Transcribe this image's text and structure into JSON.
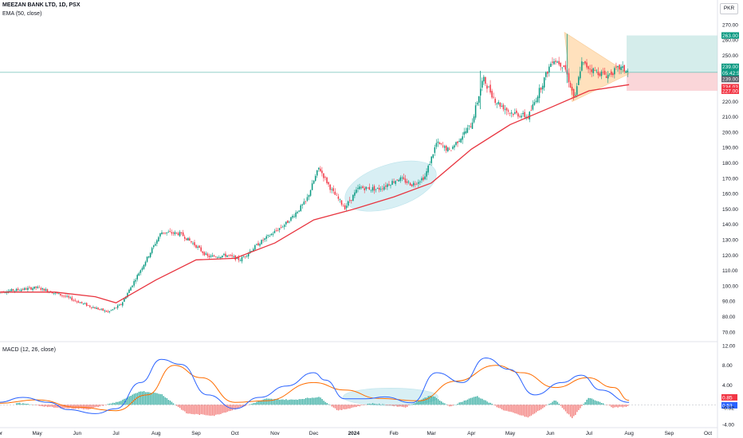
{
  "header": {
    "symbol": "MEEZAN BANK LTD, 1D, PSX",
    "indicator": "EMA (50, close)",
    "currency": "PKR"
  },
  "macd_label": "MACD (12, 26, close)",
  "colors": {
    "up": "#089981",
    "down": "#f23645",
    "ema": "#e8343f",
    "macd_line": "#2962ff",
    "signal_line": "#ff6d00",
    "hist_up": "#26a69a",
    "hist_down": "#ef5350",
    "ellipse": "#a9dde8",
    "triangle": "#ffd8a8",
    "target": "#b2dfdb",
    "stop": "#f8c8cc"
  },
  "chart_data": [
    {
      "type": "candlestick",
      "title": "MEEZAN BANK LTD, 1D, PSX",
      "ylim": [
        65,
        272
      ],
      "y_ticks": [
        "270.00",
        "260.00",
        "250.00",
        "240.00",
        "230.00",
        "220.00",
        "210.00",
        "200.00",
        "190.00",
        "180.00",
        "170.00",
        "160.00",
        "150.00",
        "140.00",
        "130.00",
        "120.00",
        "110.00",
        "100.00",
        "90.00",
        "80.00",
        "70.00"
      ],
      "x_ticks": [
        "Apr",
        "May",
        "Jun",
        "Jul",
        "Aug",
        "Sep",
        "Oct",
        "Nov",
        "Dec",
        "2024",
        "Feb",
        "Mar",
        "Apr",
        "May",
        "Jun",
        "Jul",
        "Aug",
        "Sep",
        "Oct"
      ],
      "price_path": [
        {
          "date": "2023-04-01",
          "close": 96
        },
        {
          "date": "2023-05-01",
          "close": 99
        },
        {
          "date": "2023-05-20",
          "close": 94
        },
        {
          "date": "2023-06-10",
          "close": 87
        },
        {
          "date": "2023-06-25",
          "close": 83
        },
        {
          "date": "2023-07-05",
          "close": 88
        },
        {
          "date": "2023-07-15",
          "close": 103
        },
        {
          "date": "2023-07-25",
          "close": 118
        },
        {
          "date": "2023-08-05",
          "close": 135
        },
        {
          "date": "2023-08-20",
          "close": 134
        },
        {
          "date": "2023-09-01",
          "close": 126
        },
        {
          "date": "2023-09-10",
          "close": 119
        },
        {
          "date": "2023-09-25",
          "close": 120
        },
        {
          "date": "2023-10-05",
          "close": 117
        },
        {
          "date": "2023-10-20",
          "close": 128
        },
        {
          "date": "2023-11-10",
          "close": 141
        },
        {
          "date": "2023-11-25",
          "close": 155
        },
        {
          "date": "2023-12-05",
          "close": 177
        },
        {
          "date": "2023-12-15",
          "close": 162
        },
        {
          "date": "2023-12-25",
          "close": 151
        },
        {
          "date": "2024-01-05",
          "close": 164
        },
        {
          "date": "2024-01-20",
          "close": 163
        },
        {
          "date": "2024-02-05",
          "close": 170
        },
        {
          "date": "2024-02-15",
          "close": 166
        },
        {
          "date": "2024-02-25",
          "close": 171
        },
        {
          "date": "2024-03-05",
          "close": 193
        },
        {
          "date": "2024-03-15",
          "close": 188
        },
        {
          "date": "2024-04-01",
          "close": 205
        },
        {
          "date": "2024-04-10",
          "close": 235
        },
        {
          "date": "2024-04-20",
          "close": 220
        },
        {
          "date": "2024-05-01",
          "close": 213
        },
        {
          "date": "2024-05-15",
          "close": 210
        },
        {
          "date": "2024-05-25",
          "close": 230
        },
        {
          "date": "2024-06-03",
          "close": 248
        },
        {
          "date": "2024-06-12",
          "close": 243
        },
        {
          "date": "2024-06-20",
          "close": 221
        },
        {
          "date": "2024-06-25",
          "close": 245
        },
        {
          "date": "2024-07-05",
          "close": 240
        },
        {
          "date": "2024-07-15",
          "close": 237
        },
        {
          "date": "2024-07-25",
          "close": 242
        },
        {
          "date": "2024-08-01",
          "close": 239
        }
      ],
      "ema_50": [
        {
          "date": "2023-04-01",
          "value": 96
        },
        {
          "date": "2023-05-15",
          "value": 96
        },
        {
          "date": "2023-06-15",
          "value": 93
        },
        {
          "date": "2023-07-01",
          "value": 89
        },
        {
          "date": "2023-08-01",
          "value": 104
        },
        {
          "date": "2023-09-01",
          "value": 117
        },
        {
          "date": "2023-10-01",
          "value": 118
        },
        {
          "date": "2023-11-01",
          "value": 128
        },
        {
          "date": "2023-12-01",
          "value": 143
        },
        {
          "date": "2024-01-01",
          "value": 150
        },
        {
          "date": "2024-02-01",
          "value": 158
        },
        {
          "date": "2024-03-01",
          "value": 167
        },
        {
          "date": "2024-04-01",
          "value": 189
        },
        {
          "date": "2024-05-01",
          "value": 205
        },
        {
          "date": "2024-06-01",
          "value": 216
        },
        {
          "date": "2024-07-01",
          "value": 227
        },
        {
          "date": "2024-08-01",
          "value": 231
        }
      ],
      "last_price": 239.0,
      "price_labels": [
        {
          "label": "263.00",
          "color": "#089981"
        },
        {
          "label": "239.00",
          "color": "#089981"
        },
        {
          "label": "05:42:53",
          "color": "#089981"
        },
        {
          "label": "239.00",
          "color": "#5d606b"
        },
        {
          "label": "234.03",
          "color": "#f23645"
        },
        {
          "label": "227.00",
          "color": "#f23645"
        }
      ],
      "position": {
        "entry": 239.0,
        "target": 263.0,
        "stop": 227.0
      }
    },
    {
      "type": "macd",
      "title": "MACD (12, 26, close)",
      "ylim": [
        -4.5,
        12.5
      ],
      "y_ticks": [
        "12.00",
        "8.00",
        "4.00",
        "-4.00"
      ],
      "last_values": [
        {
          "label": "0.85",
          "color": "#f23645"
        },
        {
          "label": "0.53",
          "color": "#2962ff"
        },
        {
          "label": "-0.32",
          "color": "#ffffff"
        }
      ],
      "macd_path": [
        {
          "date": "2023-04-01",
          "value": 0.5
        },
        {
          "date": "2023-04-20",
          "value": 1.5
        },
        {
          "date": "2023-05-10",
          "value": 0.5
        },
        {
          "date": "2023-05-25",
          "value": -1.0
        },
        {
          "date": "2023-06-15",
          "value": -1.8
        },
        {
          "date": "2023-07-01",
          "value": -0.8
        },
        {
          "date": "2023-07-20",
          "value": 4.5
        },
        {
          "date": "2023-08-05",
          "value": 9.2
        },
        {
          "date": "2023-08-20",
          "value": 8.2
        },
        {
          "date": "2023-09-10",
          "value": 2.0
        },
        {
          "date": "2023-10-01",
          "value": -0.8
        },
        {
          "date": "2023-10-20",
          "value": 1.5
        },
        {
          "date": "2023-11-10",
          "value": 3.8
        },
        {
          "date": "2023-12-01",
          "value": 6.5
        },
        {
          "date": "2023-12-10",
          "value": 5.0
        },
        {
          "date": "2023-12-25",
          "value": 1.2
        },
        {
          "date": "2024-01-10",
          "value": 1.2
        },
        {
          "date": "2024-01-25",
          "value": 1.6
        },
        {
          "date": "2024-02-15",
          "value": 0.4
        },
        {
          "date": "2024-03-05",
          "value": 6.5
        },
        {
          "date": "2024-03-25",
          "value": 4.5
        },
        {
          "date": "2024-04-12",
          "value": 9.5
        },
        {
          "date": "2024-04-30",
          "value": 7.2
        },
        {
          "date": "2024-05-20",
          "value": 2.0
        },
        {
          "date": "2024-06-10",
          "value": 4.5
        },
        {
          "date": "2024-06-25",
          "value": 6.0
        },
        {
          "date": "2024-07-10",
          "value": 3.0
        },
        {
          "date": "2024-08-01",
          "value": 0.5
        }
      ],
      "signal_path": [
        {
          "date": "2023-04-01",
          "value": 0.3
        },
        {
          "date": "2023-05-01",
          "value": 1.0
        },
        {
          "date": "2023-06-01",
          "value": -0.5
        },
        {
          "date": "2023-07-01",
          "value": -1.2
        },
        {
          "date": "2023-07-25",
          "value": 2.0
        },
        {
          "date": "2023-08-15",
          "value": 8.0
        },
        {
          "date": "2023-09-05",
          "value": 5.5
        },
        {
          "date": "2023-10-01",
          "value": 0.5
        },
        {
          "date": "2023-10-25",
          "value": 0.8
        },
        {
          "date": "2023-12-01",
          "value": 4.5
        },
        {
          "date": "2023-12-25",
          "value": 3.0
        },
        {
          "date": "2024-01-20",
          "value": 1.3
        },
        {
          "date": "2024-02-20",
          "value": 0.8
        },
        {
          "date": "2024-03-20",
          "value": 4.8
        },
        {
          "date": "2024-04-20",
          "value": 8.0
        },
        {
          "date": "2024-05-10",
          "value": 6.5
        },
        {
          "date": "2024-06-05",
          "value": 3.5
        },
        {
          "date": "2024-06-30",
          "value": 5.5
        },
        {
          "date": "2024-07-20",
          "value": 3.5
        },
        {
          "date": "2024-08-01",
          "value": 0.9
        }
      ],
      "histogram": [
        {
          "date": "2023-04-15",
          "value": 0.4
        },
        {
          "date": "2023-05-15",
          "value": -0.6
        },
        {
          "date": "2023-06-10",
          "value": -0.9
        },
        {
          "date": "2023-07-05",
          "value": 0.8
        },
        {
          "date": "2023-07-20",
          "value": 2.8
        },
        {
          "date": "2023-08-05",
          "value": 2.2
        },
        {
          "date": "2023-08-25",
          "value": -1.8
        },
        {
          "date": "2023-09-15",
          "value": -2.2
        },
        {
          "date": "2023-10-05",
          "value": -0.6
        },
        {
          "date": "2023-10-25",
          "value": 1.2
        },
        {
          "date": "2023-11-15",
          "value": 1.0
        },
        {
          "date": "2023-12-05",
          "value": 1.6
        },
        {
          "date": "2023-12-20",
          "value": -1.2
        },
        {
          "date": "2024-01-15",
          "value": 0.3
        },
        {
          "date": "2024-02-10",
          "value": -0.5
        },
        {
          "date": "2024-03-01",
          "value": 2.0
        },
        {
          "date": "2024-03-15",
          "value": -0.4
        },
        {
          "date": "2024-04-05",
          "value": 1.8
        },
        {
          "date": "2024-04-25",
          "value": -1.0
        },
        {
          "date": "2024-05-15",
          "value": -2.6
        },
        {
          "date": "2024-06-05",
          "value": 1.0
        },
        {
          "date": "2024-06-18",
          "value": -2.8
        },
        {
          "date": "2024-07-01",
          "value": 1.5
        },
        {
          "date": "2024-07-20",
          "value": -0.6
        },
        {
          "date": "2024-08-01",
          "value": -0.32
        }
      ]
    }
  ]
}
